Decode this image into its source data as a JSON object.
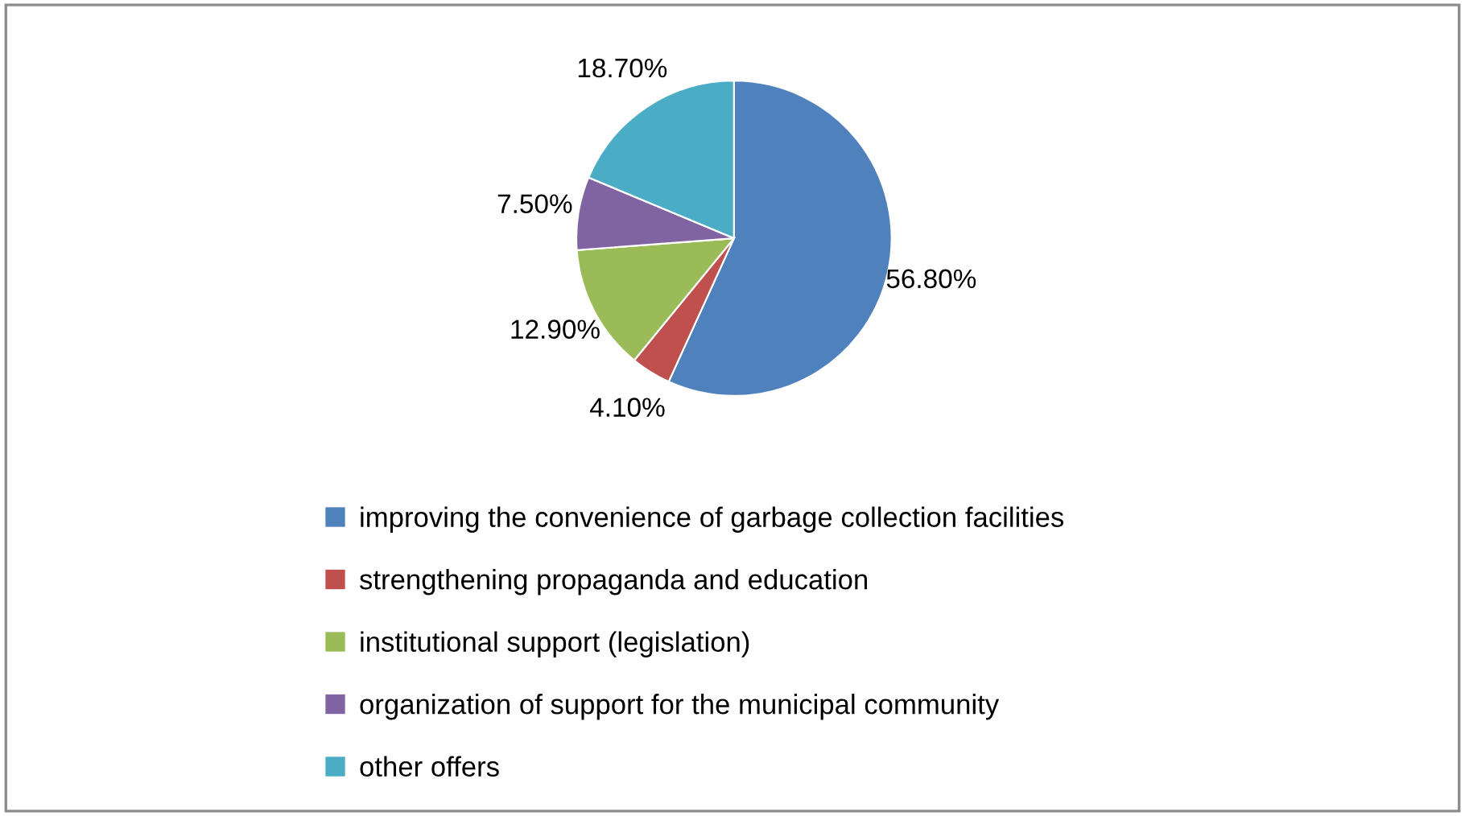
{
  "chart_data": {
    "type": "pie",
    "categories": [
      "improving the convenience of garbage collection facilities",
      "strengthening propaganda and education",
      "institutional support (legislation)",
      "organization of support for the municipal community",
      "other offers"
    ],
    "values": [
      56.8,
      4.1,
      12.9,
      7.5,
      18.7
    ],
    "value_labels": [
      "56.80%",
      "4.10%",
      "12.90%",
      "7.50%",
      "18.70%"
    ],
    "colors": [
      "#4f81bd",
      "#c0504d",
      "#9bbb59",
      "#8064a2",
      "#4bacc6"
    ],
    "legend": "bottom"
  }
}
